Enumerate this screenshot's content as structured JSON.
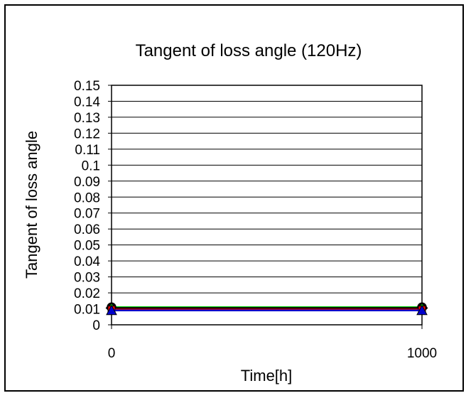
{
  "chart_data": {
    "type": "line",
    "title": "Tangent of loss angle (120Hz)",
    "xlabel": "Time[h]",
    "ylabel": "Tangent of loss angle",
    "x": [
      0,
      1000
    ],
    "x_ticks": [
      "0",
      "1000"
    ],
    "y_ticks": [
      "0",
      "0.01",
      "0.02",
      "0.03",
      "0.04",
      "0.05",
      "0.06",
      "0.07",
      "0.08",
      "0.09",
      "0.1",
      "0.11",
      "0.12",
      "0.13",
      "0.14",
      "0.15"
    ],
    "ylim": [
      0,
      0.15
    ],
    "grid": true,
    "series": [
      {
        "values": [
          0.011,
          0.011
        ],
        "color": "#00cc00",
        "marker": "circle"
      },
      {
        "values": [
          0.0105,
          0.0105
        ],
        "color": "#000000",
        "marker": "diamond"
      },
      {
        "values": [
          0.0095,
          0.0095
        ],
        "color": "#ff0000",
        "marker": "square"
      },
      {
        "values": [
          0.009,
          0.009
        ],
        "color": "#0000cc",
        "marker": "triangle"
      }
    ]
  }
}
